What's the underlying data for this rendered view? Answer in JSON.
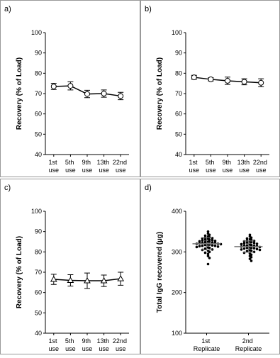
{
  "chart_data": [
    {
      "type": "line",
      "label": "a)",
      "y_label": "Recovery (% of Load)",
      "categories": [
        "1st use",
        "5th use",
        "9th use",
        "13th use",
        "22nd use"
      ],
      "values": [
        73.5,
        73.8,
        69.8,
        70.0,
        68.8
      ],
      "errors": [
        1.5,
        2.0,
        1.8,
        1.8,
        1.8
      ],
      "marker": "circle",
      "color": "#000000",
      "ylim": [
        40,
        100
      ],
      "yticks": [
        40,
        50,
        60,
        70,
        80,
        90,
        100
      ]
    },
    {
      "type": "line",
      "label": "b)",
      "y_label": "Recovery (% of Load)",
      "categories": [
        "1st use",
        "5th use",
        "9th use",
        "13th use",
        "22nd use"
      ],
      "values": [
        78.0,
        77.0,
        76.3,
        75.8,
        75.3
      ],
      "errors": [
        1.0,
        0.8,
        1.8,
        1.5,
        2.0
      ],
      "marker": "circle",
      "color": "#000000",
      "ylim": [
        40,
        100
      ],
      "yticks": [
        40,
        50,
        60,
        70,
        80,
        90,
        100
      ]
    },
    {
      "type": "line",
      "label": "c)",
      "y_label": "Recovery (% of Load)",
      "categories": [
        "1st use",
        "5th use",
        "9th use",
        "13th use",
        "22nd use"
      ],
      "values": [
        66.5,
        66.0,
        65.8,
        65.8,
        66.8
      ],
      "errors": [
        2.5,
        2.8,
        3.8,
        2.8,
        3.2
      ],
      "marker": "triangle",
      "color": "#000000",
      "ylim": [
        40,
        100
      ],
      "yticks": [
        40,
        50,
        60,
        70,
        80,
        90,
        100
      ]
    },
    {
      "type": "dot",
      "label": "d)",
      "y_label": "Total IgG recovered (µg)",
      "categories": [
        "1st Replicate",
        "2nd Replicate"
      ],
      "values": [
        [
          350,
          345,
          342,
          340,
          338,
          336,
          335,
          334,
          333,
          332,
          330,
          330,
          329,
          328,
          327,
          326,
          325,
          325,
          324,
          323,
          322,
          322,
          321,
          320,
          320,
          319,
          318,
          318,
          317,
          316,
          315,
          315,
          314,
          313,
          312,
          311,
          310,
          308,
          306,
          305,
          303,
          300,
          298,
          295,
          290,
          285,
          270
        ],
        [
          342,
          338,
          335,
          333,
          331,
          330,
          328,
          327,
          326,
          325,
          324,
          323,
          322,
          321,
          320,
          319,
          318,
          317,
          316,
          315,
          315,
          314,
          313,
          312,
          311,
          310,
          310,
          309,
          308,
          307,
          306,
          305,
          304,
          303,
          302,
          300,
          298,
          296,
          293,
          290,
          287,
          283,
          278
        ]
      ],
      "mean": [
        320,
        313
      ],
      "sd": [
        15,
        14
      ],
      "color": "#000000",
      "ylim": [
        100,
        400
      ],
      "yticks": [
        100,
        200,
        300,
        400
      ]
    }
  ]
}
